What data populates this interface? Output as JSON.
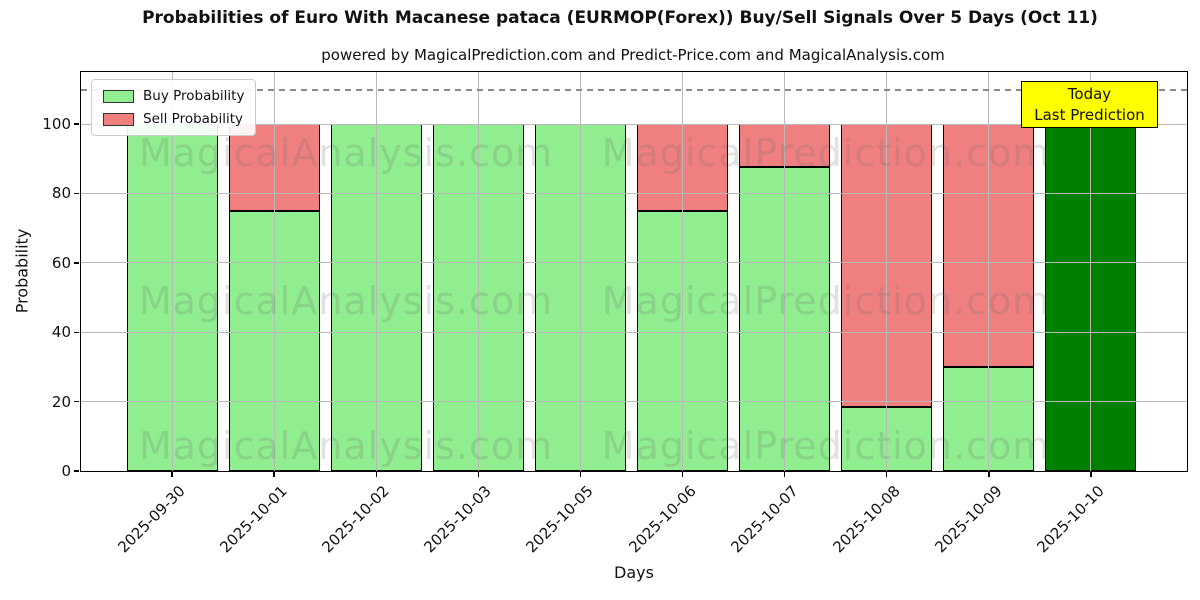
{
  "title": "Probabilities of Euro With Macanese pataca (EURMOP(Forex)) Buy/Sell Signals Over 5 Days (Oct 11)",
  "subtitle": "powered by MagicalPrediction.com and Predict-Price.com and MagicalAnalysis.com",
  "chart_data": {
    "type": "bar",
    "stacked": true,
    "title": "Probabilities of Euro With Macanese pataca (EURMOP(Forex)) Buy/Sell Signals Over 5 Days (Oct 11)",
    "subtitle": "powered by MagicalPrediction.com and Predict-Price.com and MagicalAnalysis.com",
    "xlabel": "Days",
    "ylabel": "Probability",
    "categories": [
      "2025-09-30",
      "2025-10-01",
      "2025-10-02",
      "2025-10-03",
      "2025-10-05",
      "2025-10-06",
      "2025-10-07",
      "2025-10-08",
      "2025-10-09",
      "2025-10-10"
    ],
    "series": [
      {
        "name": "Buy Probability",
        "color": "#90EE90",
        "values": [
          100,
          75,
          100,
          100,
          100,
          75,
          87.5,
          18.5,
          30,
          100
        ]
      },
      {
        "name": "Sell Probability",
        "color": "#F08080",
        "values": [
          0,
          25,
          0,
          0,
          0,
          25,
          12.5,
          81.5,
          70,
          0
        ]
      }
    ],
    "today_bar": {
      "index": 9,
      "category": "2025-10-10",
      "color": "#008000",
      "buy": 100,
      "sell": 0
    },
    "ylim": [
      0,
      115
    ],
    "yticks": [
      0,
      20,
      40,
      60,
      80,
      100
    ],
    "dashed_guide_y": 110,
    "grid": true,
    "legend": {
      "position": "upper-left",
      "entries": [
        {
          "label": "Buy Probability",
          "color": "#90EE90"
        },
        {
          "label": "Sell Probability",
          "color": "#F08080"
        }
      ]
    },
    "annotation": {
      "lines": [
        "Today",
        "Last Prediction"
      ],
      "bg": "#ffff00",
      "border": "#000000"
    },
    "watermarks": [
      "MagicalAnalysis.com",
      "MagicalPrediction.com"
    ],
    "colors": {
      "buy": "#90EE90",
      "sell": "#F08080",
      "today": "#008000",
      "grid": "#b9b9b9",
      "guide": "#8a8a8a",
      "bar_edge": "#000000"
    }
  }
}
